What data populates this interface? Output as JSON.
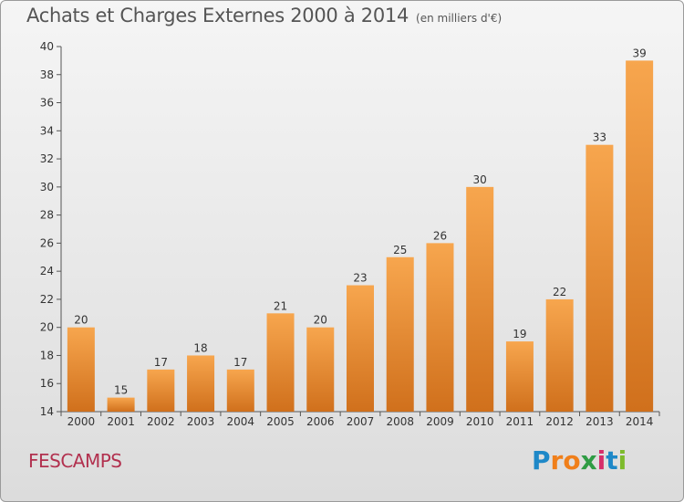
{
  "title": "Achats et Charges Externes 2000 à 2014",
  "unit_note": "(en milliers d'€)",
  "location_label": "FESCAMPS",
  "logo": {
    "text": "Proxiti",
    "letters": [
      {
        "ch": "P",
        "color": "#1e88c8"
      },
      {
        "ch": "r",
        "color": "#f07f1a"
      },
      {
        "ch": "o",
        "color": "#f07f1a"
      },
      {
        "ch": "x",
        "color": "#2f9c44"
      },
      {
        "ch": "i",
        "color": "#d62e6a"
      },
      {
        "ch": "t",
        "color": "#1e88c8"
      },
      {
        "ch": "i",
        "color": "#7dbb2c"
      }
    ]
  },
  "colors": {
    "bar_light": "#f7a64e",
    "bar_dark": "#d0701c",
    "axis": "#555555",
    "text": "#333333"
  },
  "chart_data": {
    "type": "bar",
    "categories": [
      "2000",
      "2001",
      "2002",
      "2003",
      "2004",
      "2005",
      "2006",
      "2007",
      "2008",
      "2009",
      "2010",
      "2011",
      "2012",
      "2013",
      "2014"
    ],
    "values": [
      20,
      15,
      17,
      18,
      17,
      21,
      20,
      23,
      25,
      26,
      30,
      19,
      22,
      33,
      39
    ],
    "data_labels": [
      "20",
      "15",
      "17",
      "18",
      "17",
      "21",
      "20",
      "23",
      "25",
      "26",
      "30",
      "19",
      "22",
      "33",
      "39"
    ],
    "ylim": [
      14,
      40
    ],
    "yticks": [
      14,
      16,
      18,
      20,
      22,
      24,
      26,
      28,
      30,
      32,
      34,
      36,
      38,
      40
    ],
    "grid": false,
    "legend": "none"
  }
}
